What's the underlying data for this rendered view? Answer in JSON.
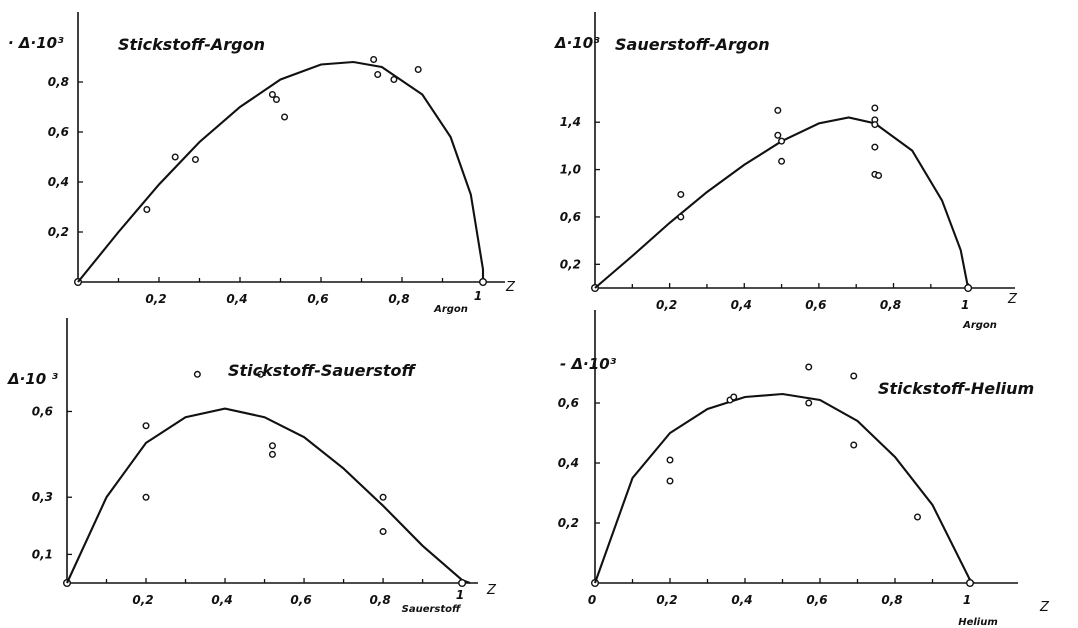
{
  "chart_data": [
    {
      "type": "scatter",
      "title": "Stickstoff-Argon",
      "ylabel": "· Δ·10³",
      "xlabel": "Argon",
      "xvar": "Z",
      "xlim": [
        0,
        1
      ],
      "ylim": [
        0,
        1
      ],
      "xticks": [
        0.2,
        0.4,
        0.6,
        0.8
      ],
      "xtick_labels": [
        "0,2",
        "0,4",
        "0,6",
        "0,8"
      ],
      "yticks": [
        0.2,
        0.4,
        0.6,
        0.8
      ],
      "ytick_labels": [
        "0,2",
        "0,4",
        "0,6",
        "0,8"
      ],
      "end_label": "1",
      "points": [
        {
          "x": 0.17,
          "y": 0.29
        },
        {
          "x": 0.24,
          "y": 0.5
        },
        {
          "x": 0.29,
          "y": 0.49
        },
        {
          "x": 0.48,
          "y": 0.75
        },
        {
          "x": 0.49,
          "y": 0.73
        },
        {
          "x": 0.51,
          "y": 0.66
        },
        {
          "x": 0.73,
          "y": 0.89
        },
        {
          "x": 0.74,
          "y": 0.83
        },
        {
          "x": 0.78,
          "y": 0.81
        },
        {
          "x": 0.84,
          "y": 0.85
        }
      ],
      "curve": [
        [
          0,
          0
        ],
        [
          0.1,
          0.2
        ],
        [
          0.2,
          0.39
        ],
        [
          0.3,
          0.56
        ],
        [
          0.4,
          0.7
        ],
        [
          0.5,
          0.81
        ],
        [
          0.6,
          0.87
        ],
        [
          0.68,
          0.88
        ],
        [
          0.75,
          0.86
        ],
        [
          0.85,
          0.75
        ],
        [
          0.92,
          0.58
        ],
        [
          0.97,
          0.35
        ],
        [
          1.0,
          0.05
        ],
        [
          1.0,
          0
        ]
      ]
    },
    {
      "type": "scatter",
      "title": "Sauerstoff-Argon",
      "ylabel": "Δ·10³",
      "xlabel": "Argon",
      "xvar": "Z",
      "xlim": [
        0,
        1.08
      ],
      "ylim": [
        0,
        1.9
      ],
      "xticks": [
        0.2,
        0.4,
        0.6,
        0.8,
        1.0
      ],
      "xtick_labels": [
        "0,2",
        "0,4",
        "0,6",
        "0,8",
        "1"
      ],
      "yticks": [
        0.2,
        0.6,
        1.0,
        1.4
      ],
      "ytick_labels": [
        "0,2",
        "0,6",
        "1,0",
        "1,4"
      ],
      "points": [
        {
          "x": 0.23,
          "y": 0.79
        },
        {
          "x": 0.23,
          "y": 0.6
        },
        {
          "x": 0.49,
          "y": 1.5
        },
        {
          "x": 0.49,
          "y": 1.29
        },
        {
          "x": 0.5,
          "y": 1.24
        },
        {
          "x": 0.5,
          "y": 1.07
        },
        {
          "x": 0.75,
          "y": 1.52
        },
        {
          "x": 0.75,
          "y": 1.42
        },
        {
          "x": 0.75,
          "y": 1.38
        },
        {
          "x": 0.75,
          "y": 1.19
        },
        {
          "x": 0.75,
          "y": 0.96
        },
        {
          "x": 0.76,
          "y": 0.95
        }
      ],
      "curve": [
        [
          0,
          0
        ],
        [
          0.1,
          0.27
        ],
        [
          0.2,
          0.55
        ],
        [
          0.3,
          0.81
        ],
        [
          0.4,
          1.04
        ],
        [
          0.5,
          1.24
        ],
        [
          0.6,
          1.39
        ],
        [
          0.68,
          1.44
        ],
        [
          0.75,
          1.39
        ],
        [
          0.85,
          1.16
        ],
        [
          0.93,
          0.74
        ],
        [
          0.98,
          0.32
        ],
        [
          1.0,
          0.0
        ]
      ]
    },
    {
      "type": "scatter",
      "title": "Stickstoff-Sauerstoff",
      "ylabel": "Δ·10 ³",
      "xlabel": "Sauerstoff",
      "xvar": "Z",
      "xlim": [
        0,
        1.02
      ],
      "ylim": [
        0,
        0.85
      ],
      "xticks": [
        0.2,
        0.4,
        0.6,
        0.8
      ],
      "xtick_labels": [
        "0,2",
        "0,4",
        "0,6",
        "0,8"
      ],
      "yticks": [
        0.1,
        0.3,
        0.6
      ],
      "ytick_labels": [
        "0,1",
        "0,3",
        "0,6"
      ],
      "end_label": "1",
      "points": [
        {
          "x": 0.2,
          "y": 0.55
        },
        {
          "x": 0.2,
          "y": 0.3
        },
        {
          "x": 0.33,
          "y": 0.73
        },
        {
          "x": 0.49,
          "y": 0.73
        },
        {
          "x": 0.52,
          "y": 0.48
        },
        {
          "x": 0.52,
          "y": 0.45
        },
        {
          "x": 0.8,
          "y": 0.3
        },
        {
          "x": 0.8,
          "y": 0.18
        }
      ],
      "curve": [
        [
          0,
          0
        ],
        [
          0.1,
          0.3
        ],
        [
          0.2,
          0.49
        ],
        [
          0.3,
          0.58
        ],
        [
          0.4,
          0.61
        ],
        [
          0.5,
          0.58
        ],
        [
          0.6,
          0.51
        ],
        [
          0.7,
          0.4
        ],
        [
          0.8,
          0.27
        ],
        [
          0.9,
          0.13
        ],
        [
          1.0,
          0.01
        ],
        [
          1.02,
          0
        ]
      ]
    },
    {
      "type": "scatter",
      "title": "Stickstoff-Helium",
      "ylabel": "- Δ·10³",
      "xlabel": "Helium",
      "xvar": "Z",
      "xlim": [
        0,
        1.08
      ],
      "ylim": [
        0,
        0.8
      ],
      "xticks": [
        0,
        0.2,
        0.4,
        0.6,
        0.8,
        1.0
      ],
      "xtick_labels": [
        "0",
        "0,2",
        "0,4",
        "0,6",
        "0,8",
        "1"
      ],
      "yticks": [
        0.2,
        0.4,
        0.6
      ],
      "ytick_labels": [
        "0,2",
        "0,4",
        "0,6"
      ],
      "points": [
        {
          "x": 0.2,
          "y": 0.41
        },
        {
          "x": 0.2,
          "y": 0.34
        },
        {
          "x": 0.36,
          "y": 0.61
        },
        {
          "x": 0.37,
          "y": 0.62
        },
        {
          "x": 0.57,
          "y": 0.72
        },
        {
          "x": 0.57,
          "y": 0.6
        },
        {
          "x": 0.69,
          "y": 0.69
        },
        {
          "x": 0.69,
          "y": 0.46
        },
        {
          "x": 0.86,
          "y": 0.22
        }
      ],
      "curve": [
        [
          0,
          0
        ],
        [
          0.1,
          0.35
        ],
        [
          0.2,
          0.5
        ],
        [
          0.3,
          0.58
        ],
        [
          0.4,
          0.62
        ],
        [
          0.5,
          0.63
        ],
        [
          0.6,
          0.61
        ],
        [
          0.7,
          0.54
        ],
        [
          0.8,
          0.42
        ],
        [
          0.9,
          0.26
        ],
        [
          1.0,
          0.01
        ],
        [
          1.01,
          0
        ]
      ]
    }
  ]
}
